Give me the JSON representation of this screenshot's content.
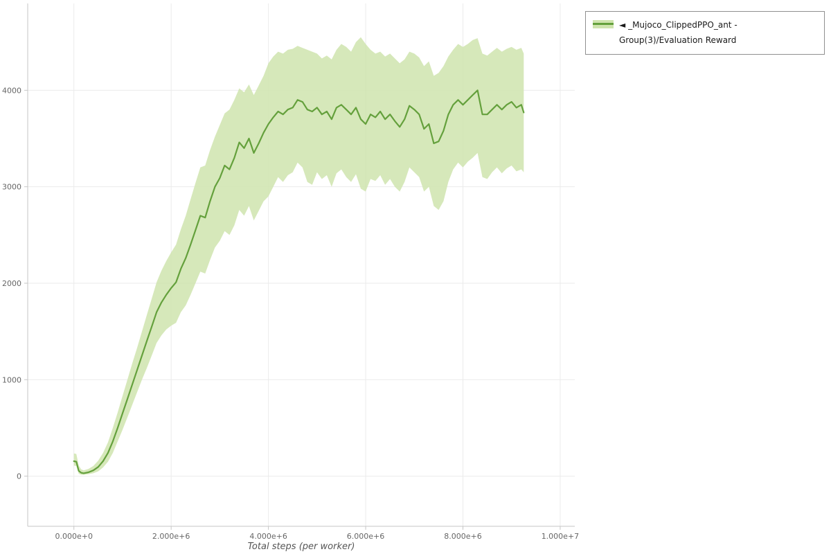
{
  "page": {
    "background": "#ffffff"
  },
  "legend": {
    "toggle_icon": "◄",
    "label": "_Mujoco_ClippedPPO_ant - Group(3)/Evaluation Reward"
  },
  "chart_data": {
    "type": "line",
    "title": "",
    "xlabel": "Total steps (per worker)",
    "ylabel": "",
    "xlim": [
      -950000,
      10300000
    ],
    "ylim": [
      -520,
      4900
    ],
    "grid": true,
    "legend_position": "outside-top-right",
    "x_ticks": [
      {
        "value": 0,
        "label": "0.000e+0"
      },
      {
        "value": 2000000,
        "label": "2.000e+6"
      },
      {
        "value": 4000000,
        "label": "4.000e+6"
      },
      {
        "value": 6000000,
        "label": "6.000e+6"
      },
      {
        "value": 8000000,
        "label": "8.000e+6"
      },
      {
        "value": 10000000,
        "label": "1.000e+7"
      }
    ],
    "y_ticks": [
      0,
      1000,
      2000,
      3000,
      4000
    ],
    "colors": {
      "line": "#64a03c",
      "band": "#cfe4ae",
      "grid": "#ebebeb",
      "axis": "#c6c6c6",
      "tick_text": "#666666",
      "axis_label": "#555555"
    },
    "series": [
      {
        "name": "_Mujoco_ClippedPPO_ant - Group(3)/Evaluation Reward",
        "x": [
          0,
          50000,
          100000,
          150000,
          200000,
          300000,
          400000,
          500000,
          600000,
          700000,
          800000,
          900000,
          1000000,
          1100000,
          1200000,
          1300000,
          1400000,
          1500000,
          1600000,
          1700000,
          1800000,
          1900000,
          2000000,
          2100000,
          2200000,
          2300000,
          2400000,
          2500000,
          2600000,
          2700000,
          2800000,
          2900000,
          3000000,
          3100000,
          3200000,
          3300000,
          3400000,
          3500000,
          3600000,
          3700000,
          3800000,
          3900000,
          4000000,
          4100000,
          4200000,
          4300000,
          4400000,
          4500000,
          4600000,
          4700000,
          4800000,
          4900000,
          5000000,
          5100000,
          5200000,
          5300000,
          5400000,
          5500000,
          5600000,
          5700000,
          5800000,
          5900000,
          6000000,
          6100000,
          6200000,
          6300000,
          6400000,
          6500000,
          6600000,
          6700000,
          6800000,
          6900000,
          7000000,
          7100000,
          7200000,
          7300000,
          7400000,
          7500000,
          7600000,
          7700000,
          7800000,
          7900000,
          8000000,
          8100000,
          8200000,
          8300000,
          8400000,
          8500000,
          8600000,
          8700000,
          8800000,
          8900000,
          9000000,
          9100000,
          9200000,
          9250000
        ],
        "mean": [
          155,
          150,
          55,
          35,
          30,
          40,
          60,
          95,
          155,
          240,
          360,
          500,
          650,
          800,
          950,
          1100,
          1250,
          1400,
          1550,
          1700,
          1800,
          1880,
          1950,
          2010,
          2150,
          2260,
          2400,
          2550,
          2700,
          2680,
          2850,
          3000,
          3090,
          3220,
          3180,
          3300,
          3460,
          3400,
          3500,
          3350,
          3450,
          3560,
          3650,
          3720,
          3780,
          3750,
          3800,
          3820,
          3900,
          3880,
          3800,
          3780,
          3820,
          3750,
          3780,
          3700,
          3820,
          3850,
          3800,
          3750,
          3820,
          3700,
          3650,
          3750,
          3720,
          3780,
          3700,
          3750,
          3680,
          3620,
          3700,
          3840,
          3800,
          3750,
          3600,
          3650,
          3450,
          3470,
          3580,
          3750,
          3850,
          3900,
          3850,
          3900,
          3950,
          4000,
          3750,
          3750,
          3800,
          3850,
          3800,
          3850,
          3880,
          3820,
          3850,
          3770
        ],
        "lower": [
          110,
          105,
          25,
          15,
          15,
          20,
          30,
          50,
          90,
          150,
          240,
          360,
          480,
          610,
          740,
          870,
          1000,
          1120,
          1250,
          1380,
          1460,
          1520,
          1560,
          1590,
          1700,
          1770,
          1880,
          2000,
          2120,
          2100,
          2240,
          2370,
          2440,
          2540,
          2500,
          2600,
          2760,
          2700,
          2800,
          2650,
          2750,
          2850,
          2900,
          3000,
          3100,
          3050,
          3120,
          3150,
          3250,
          3200,
          3050,
          3020,
          3150,
          3080,
          3120,
          3000,
          3140,
          3180,
          3100,
          3050,
          3130,
          2980,
          2950,
          3080,
          3060,
          3120,
          3020,
          3080,
          3000,
          2950,
          3050,
          3200,
          3150,
          3100,
          2950,
          3000,
          2800,
          2760,
          2850,
          3050,
          3180,
          3250,
          3200,
          3260,
          3300,
          3350,
          3100,
          3080,
          3150,
          3200,
          3140,
          3190,
          3220,
          3160,
          3180,
          3150
        ],
        "upper": [
          235,
          230,
          110,
          70,
          60,
          75,
          105,
          160,
          240,
          350,
          500,
          660,
          830,
          1000,
          1170,
          1330,
          1500,
          1670,
          1840,
          2010,
          2130,
          2230,
          2320,
          2400,
          2560,
          2700,
          2870,
          3040,
          3200,
          3220,
          3380,
          3520,
          3640,
          3760,
          3800,
          3900,
          4020,
          3980,
          4060,
          3950,
          4050,
          4150,
          4280,
          4350,
          4400,
          4380,
          4420,
          4430,
          4460,
          4440,
          4420,
          4400,
          4380,
          4330,
          4360,
          4320,
          4420,
          4480,
          4450,
          4400,
          4500,
          4550,
          4480,
          4420,
          4380,
          4400,
          4350,
          4380,
          4330,
          4280,
          4320,
          4400,
          4380,
          4340,
          4250,
          4300,
          4150,
          4180,
          4250,
          4350,
          4420,
          4480,
          4450,
          4480,
          4520,
          4540,
          4380,
          4360,
          4400,
          4440,
          4400,
          4430,
          4450,
          4420,
          4440,
          4380
        ]
      }
    ]
  }
}
